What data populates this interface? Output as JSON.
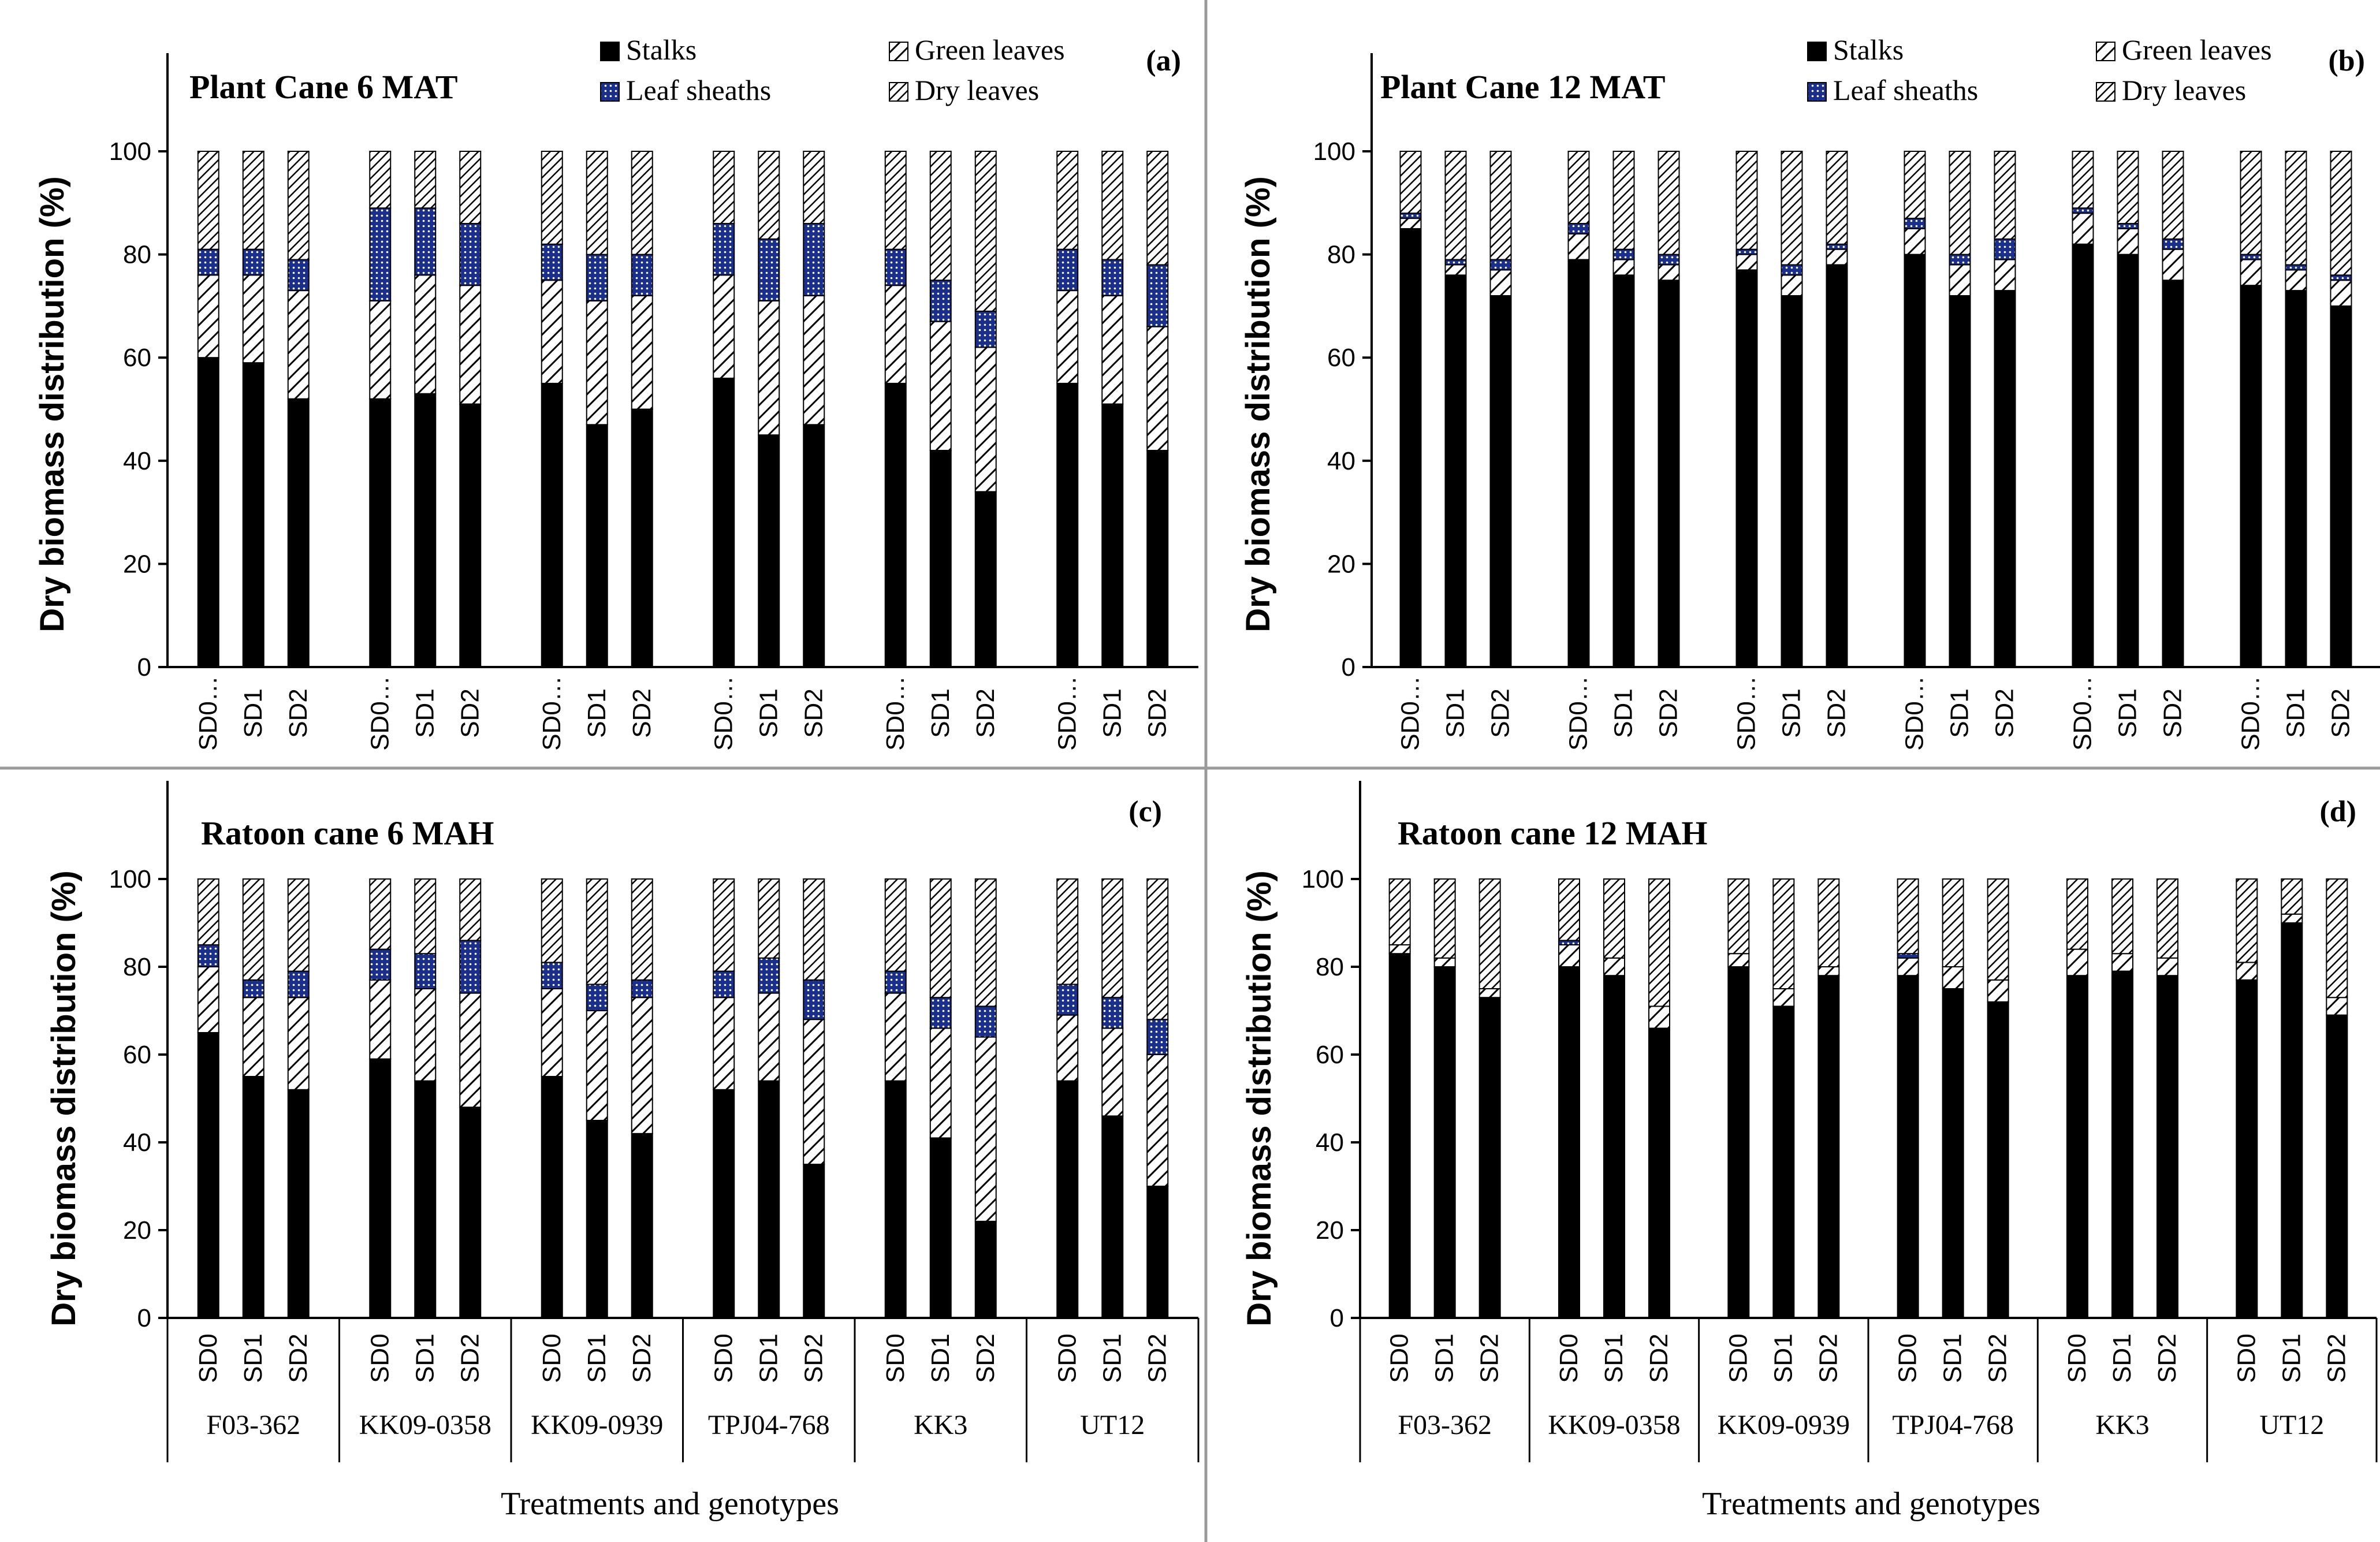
{
  "colors": {
    "stalks": "#000000",
    "leaf_sheaths": "#1a2f8c",
    "green_leaves": "#ffffff",
    "dry_leaves": "#ffffff",
    "hatch": "#000000"
  },
  "legend_labels": [
    "Stalks",
    "Green leaves",
    "Leaf sheaths",
    "Dry leaves"
  ],
  "chart_data": [
    {
      "type": "bar",
      "stacked": true,
      "panel": "(a)",
      "title": "Plant Cane 6 MAT",
      "ylabel": "Dry biomass distribution  (%)",
      "xlabel": "",
      "ylim": [
        0,
        100
      ],
      "yticks": [
        "0",
        "20",
        "40",
        "60",
        "80",
        "100"
      ],
      "legend_position": "top",
      "treatments": [
        "SD0…",
        "SD1",
        "SD2"
      ],
      "genotypes": [],
      "series_order": [
        "stalks",
        "green_leaves",
        "leaf_sheaths",
        "dry_leaves"
      ],
      "stalks": [
        60,
        59,
        52,
        52,
        53,
        51,
        55,
        47,
        50,
        56,
        45,
        47,
        55,
        42,
        34,
        55,
        51,
        42
      ],
      "green_leaves": [
        16,
        17,
        21,
        19,
        23,
        23,
        20,
        24,
        22,
        20,
        26,
        25,
        19,
        25,
        28,
        18,
        21,
        24
      ],
      "leaf_sheaths": [
        5,
        5,
        6,
        18,
        13,
        12,
        7,
        9,
        8,
        10,
        12,
        14,
        7,
        8,
        7,
        8,
        7,
        12
      ],
      "dry_leaves": [
        19,
        19,
        21,
        11,
        11,
        14,
        18,
        20,
        20,
        14,
        17,
        14,
        19,
        25,
        31,
        19,
        21,
        22
      ]
    },
    {
      "type": "bar",
      "stacked": true,
      "panel": "(b)",
      "title": "Plant Cane 12 MAT",
      "ylabel": "Dry biomass distribution  (%)",
      "xlabel": "",
      "ylim": [
        0,
        100
      ],
      "yticks": [
        "0",
        "20",
        "40",
        "60",
        "80",
        "100"
      ],
      "legend_position": "top",
      "treatments": [
        "SD0…",
        "SD1",
        "SD2"
      ],
      "genotypes": [],
      "series_order": [
        "stalks",
        "green_leaves",
        "leaf_sheaths",
        "dry_leaves"
      ],
      "stalks": [
        85,
        76,
        72,
        79,
        76,
        75,
        77,
        72,
        78,
        80,
        72,
        73,
        82,
        80,
        75,
        74,
        73,
        70
      ],
      "green_leaves": [
        2,
        2,
        5,
        5,
        3,
        3,
        3,
        4,
        3,
        5,
        6,
        6,
        6,
        5,
        6,
        5,
        4,
        5
      ],
      "leaf_sheaths": [
        1,
        1,
        2,
        2,
        2,
        2,
        1,
        2,
        1,
        2,
        2,
        4,
        1,
        1,
        2,
        1,
        1,
        1
      ],
      "dry_leaves": [
        12,
        21,
        21,
        14,
        19,
        20,
        19,
        22,
        18,
        13,
        20,
        17,
        11,
        14,
        17,
        20,
        22,
        24
      ]
    },
    {
      "type": "bar",
      "stacked": true,
      "panel": "(c)",
      "title": "Ratoon cane 6 MAH",
      "ylabel": "Dry biomass distribution  (%)",
      "xlabel": "Treatments and genotypes",
      "ylim": [
        0,
        100
      ],
      "yticks": [
        "0",
        "20",
        "40",
        "60",
        "80",
        "100"
      ],
      "legend_position": "none",
      "treatments": [
        "SD0",
        "SD1",
        "SD2"
      ],
      "genotypes": [
        "F03-362",
        "KK09-0358",
        "KK09-0939",
        "TPJ04-768",
        "KK3",
        "UT12"
      ],
      "series_order": [
        "stalks",
        "green_leaves",
        "leaf_sheaths",
        "dry_leaves"
      ],
      "stalks": [
        65,
        55,
        52,
        59,
        54,
        48,
        55,
        45,
        42,
        52,
        54,
        35,
        54,
        41,
        22,
        54,
        46,
        30
      ],
      "green_leaves": [
        15,
        18,
        21,
        18,
        21,
        26,
        20,
        25,
        31,
        21,
        20,
        33,
        20,
        25,
        42,
        15,
        20,
        30
      ],
      "leaf_sheaths": [
        5,
        4,
        6,
        7,
        8,
        12,
        6,
        6,
        4,
        6,
        8,
        9,
        5,
        7,
        7,
        7,
        7,
        8
      ],
      "dry_leaves": [
        15,
        23,
        21,
        16,
        17,
        14,
        19,
        24,
        23,
        21,
        18,
        23,
        21,
        27,
        29,
        24,
        27,
        32
      ]
    },
    {
      "type": "bar",
      "stacked": true,
      "panel": "(d)",
      "title": "Ratoon cane 12 MAH",
      "ylabel": "Dry biomass distribution  (%)",
      "xlabel": "Treatments and genotypes",
      "ylim": [
        0,
        100
      ],
      "yticks": [
        "0",
        "20",
        "40",
        "60",
        "80",
        "100"
      ],
      "legend_position": "none",
      "treatments": [
        "SD0",
        "SD1",
        "SD2"
      ],
      "genotypes": [
        "F03-362",
        "KK09-0358",
        "KK09-0939",
        "TPJ04-768",
        "KK3",
        "UT12"
      ],
      "series_order": [
        "stalks",
        "green_leaves",
        "leaf_sheaths",
        "dry_leaves"
      ],
      "stalks": [
        83,
        80,
        73,
        80,
        78,
        66,
        80,
        71,
        78,
        78,
        75,
        72,
        78,
        79,
        78,
        77,
        90,
        69
      ],
      "green_leaves": [
        2,
        2,
        2,
        5,
        4,
        5,
        3,
        4,
        2,
        4,
        5,
        5,
        6,
        4,
        4,
        4,
        2,
        4
      ],
      "leaf_sheaths": [
        0,
        0,
        0,
        1,
        0,
        0,
        0,
        0,
        0,
        1,
        0,
        0,
        0,
        0,
        0,
        0,
        0,
        0
      ],
      "dry_leaves": [
        15,
        18,
        25,
        14,
        18,
        29,
        17,
        25,
        20,
        17,
        20,
        23,
        16,
        17,
        18,
        19,
        8,
        27
      ]
    }
  ]
}
